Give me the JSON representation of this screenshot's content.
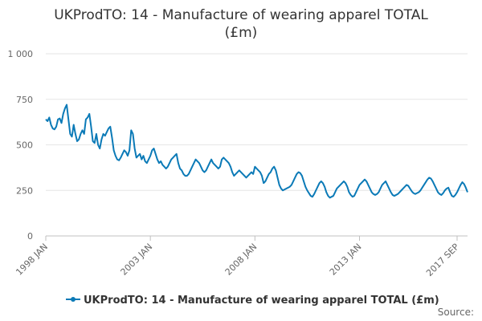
{
  "chart_data": {
    "type": "line",
    "title": "UKProdTO: 14 - Manufacture of wearing apparel TOTAL",
    "title_line2": "(£m)",
    "xlabel": "",
    "ylabel": "",
    "ylim": [
      0,
      1000
    ],
    "y_ticks": [
      0,
      250,
      500,
      750,
      1000
    ],
    "y_tick_labels": [
      "0",
      "250",
      "500",
      "750",
      "1 000"
    ],
    "x_tick_labels": [
      "1998 JAN",
      "2003 JAN",
      "2008 JAN",
      "2013 JAN",
      "2017 SEP"
    ],
    "x_tick_months": [
      0,
      60,
      120,
      180,
      236
    ],
    "grid": true,
    "legend_position": "bottom",
    "color": "#0b7ab7",
    "series": [
      {
        "name": "UKProdTO: 14 - Manufacture of wearing apparel TOTAL (£m)",
        "start": "1998-01",
        "frequency": "monthly",
        "values": [
          640,
          630,
          650,
          610,
          590,
          585,
          600,
          640,
          645,
          620,
          670,
          700,
          720,
          640,
          560,
          545,
          610,
          560,
          520,
          530,
          560,
          580,
          560,
          640,
          650,
          670,
          600,
          520,
          510,
          560,
          500,
          480,
          530,
          560,
          550,
          570,
          590,
          600,
          540,
          470,
          440,
          420,
          415,
          430,
          450,
          470,
          460,
          440,
          470,
          580,
          560,
          480,
          430,
          440,
          450,
          420,
          440,
          410,
          400,
          420,
          440,
          470,
          480,
          450,
          420,
          400,
          410,
          390,
          380,
          370,
          380,
          400,
          420,
          430,
          440,
          450,
          400,
          370,
          360,
          340,
          330,
          330,
          340,
          360,
          380,
          400,
          420,
          410,
          400,
          380,
          360,
          350,
          360,
          380,
          400,
          420,
          400,
          390,
          380,
          370,
          380,
          420,
          430,
          420,
          410,
          400,
          380,
          350,
          330,
          340,
          350,
          360,
          350,
          340,
          330,
          320,
          330,
          340,
          350,
          340,
          380,
          370,
          360,
          350,
          330,
          290,
          300,
          320,
          340,
          350,
          370,
          380,
          360,
          320,
          280,
          260,
          250,
          255,
          260,
          265,
          270,
          280,
          300,
          320,
          340,
          350,
          345,
          330,
          300,
          270,
          250,
          235,
          220,
          215,
          230,
          250,
          270,
          290,
          300,
          290,
          270,
          240,
          220,
          210,
          215,
          220,
          240,
          260,
          270,
          280,
          290,
          300,
          290,
          270,
          240,
          225,
          215,
          220,
          240,
          260,
          280,
          290,
          300,
          310,
          300,
          280,
          260,
          240,
          230,
          225,
          230,
          240,
          260,
          280,
          290,
          300,
          280,
          260,
          240,
          225,
          220,
          225,
          230,
          240,
          250,
          260,
          270,
          280,
          275,
          260,
          245,
          235,
          230,
          235,
          240,
          250,
          265,
          280,
          295,
          310,
          320,
          315,
          300,
          280,
          260,
          240,
          230,
          225,
          235,
          250,
          260,
          265,
          240,
          220,
          215,
          225,
          240,
          260,
          280,
          295,
          285,
          265,
          240
        ]
      }
    ]
  },
  "credit": "Source:"
}
